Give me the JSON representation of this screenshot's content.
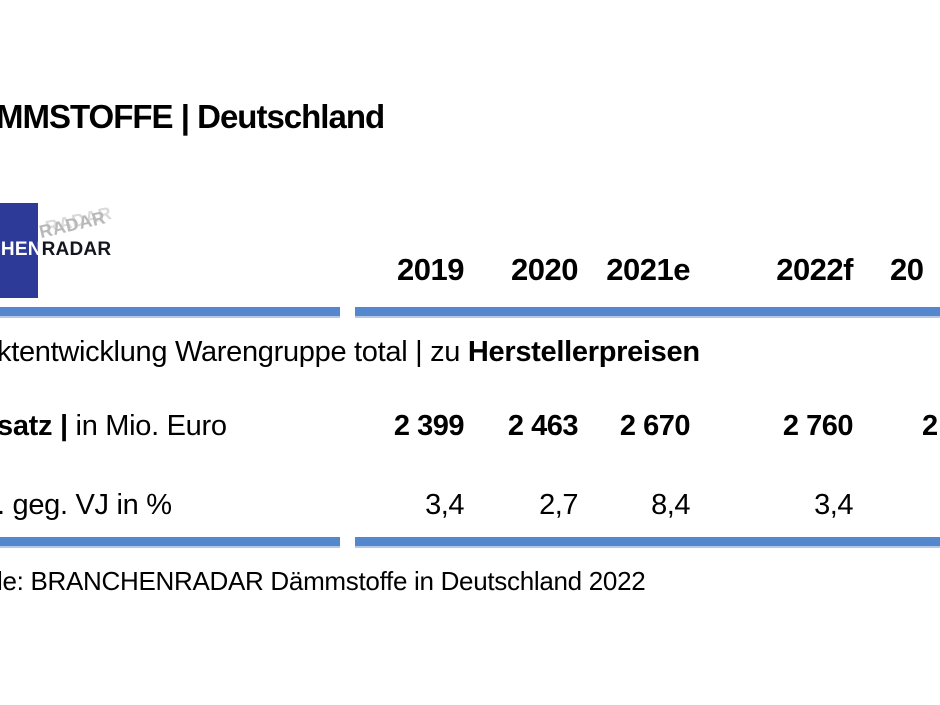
{
  "title": "MMSTOFFE | Deutschland",
  "logo": {
    "partial_left": "CHEN",
    "brand_right": "RADAR",
    "echo": "RADAR",
    "square_color": "#2e3a97"
  },
  "header": {
    "years": [
      "2019",
      "2020",
      "2021e",
      "2022f"
    ],
    "year_partial": "20"
  },
  "section": {
    "regular": "ktentwicklung Warengruppe total | zu ",
    "bold": "Herstellerpreisen"
  },
  "rows": {
    "revenue": {
      "label_bold": "satz |",
      "label_regular": " in Mio. Euro",
      "values": [
        "2 399",
        "2 463",
        "2 670",
        "2 760"
      ],
      "value_partial": "2"
    },
    "change": {
      "label": ". geg. VJ in %",
      "values": [
        "3,4",
        "2,7",
        "8,4",
        "3,4"
      ]
    }
  },
  "footer": {
    "source": "le: BRANCHENRADAR Dämmstoffe in Deutschland 2022"
  },
  "colors": {
    "divider_blue": "#5487cd",
    "logo_blue": "#2e3a97",
    "text": "#000000"
  },
  "chart_data": {
    "type": "table",
    "title": "MMSTOFFE | Deutschland",
    "section": "ktentwicklung Warengruppe total | zu Herstellerpreisen",
    "columns": [
      "2019",
      "2020",
      "2021e",
      "2022f"
    ],
    "rows": [
      {
        "label": "satz | in Mio. Euro",
        "values": [
          2399,
          2463,
          2670,
          2760
        ]
      },
      {
        "label": ". geg. VJ in %",
        "values": [
          3.4,
          2.7,
          8.4,
          3.4
        ]
      }
    ],
    "source": "le: BRANCHENRADAR Dämmstoffe in Deutschland 2022",
    "layout": {
      "value_alignment": "right",
      "dividers": "blue horizontal bars above header baseline and below last row"
    }
  }
}
